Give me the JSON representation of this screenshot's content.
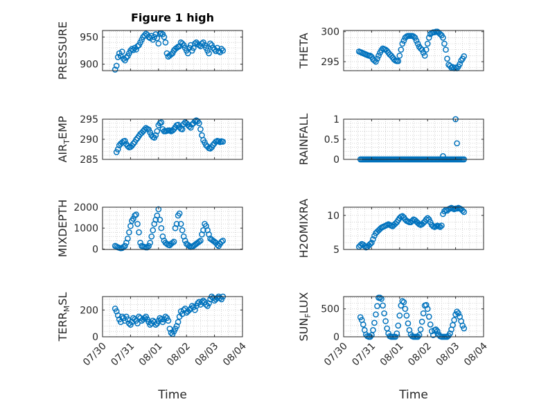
{
  "figure": {
    "title": "Figure 1 high",
    "marker_color": "#0072BD"
  },
  "x_ticks": [
    "07/30",
    "07/31",
    "08/01",
    "08/02",
    "08/03",
    "08/04"
  ],
  "xlabel": "Time",
  "chart_data": [
    {
      "type": "scatter",
      "title": "Figure 1 high",
      "ylabel": "PRESSURE",
      "ylim": [
        888,
        962
      ],
      "yticks": [
        900,
        950
      ],
      "xlim": [
        0,
        5
      ],
      "grid": true,
      "x": [
        0.45,
        0.5,
        0.55,
        0.6,
        0.65,
        0.7,
        0.75,
        0.8,
        0.85,
        0.9,
        0.95,
        1.0,
        1.05,
        1.1,
        1.15,
        1.2,
        1.25,
        1.3,
        1.35,
        1.4,
        1.45,
        1.5,
        1.55,
        1.6,
        1.65,
        1.7,
        1.75,
        1.8,
        1.85,
        1.9,
        1.95,
        2.0,
        2.05,
        2.1,
        2.15,
        2.2,
        2.25,
        2.3,
        2.35,
        2.4,
        2.45,
        2.5,
        2.55,
        2.6,
        2.65,
        2.7,
        2.75,
        2.8,
        2.85,
        2.9,
        2.95,
        3.0,
        3.05,
        3.1,
        3.15,
        3.2,
        3.25,
        3.3,
        3.35,
        3.4,
        3.45,
        3.5,
        3.55,
        3.6,
        3.65,
        3.7,
        3.75,
        3.8,
        3.85,
        3.9,
        3.95,
        4.0,
        4.05,
        4.1,
        4.15,
        4.2,
        4.25,
        4.3
      ],
      "y": [
        890,
        897,
        913,
        920,
        915,
        923,
        910,
        907,
        912,
        915,
        920,
        925,
        928,
        926,
        930,
        927,
        933,
        935,
        940,
        945,
        950,
        953,
        956,
        954,
        950,
        948,
        952,
        945,
        950,
        955,
        948,
        938,
        956,
        957,
        955,
        950,
        940,
        920,
        914,
        916,
        918,
        920,
        925,
        928,
        930,
        932,
        933,
        940,
        938,
        935,
        930,
        925,
        920,
        930,
        935,
        925,
        930,
        938,
        940,
        937,
        935,
        933,
        938,
        940,
        935,
        930,
        925,
        920,
        938,
        935,
        930,
        927,
        924,
        930,
        924,
        922,
        928,
        925
      ]
    },
    {
      "type": "scatter",
      "ylabel": "THETA",
      "ylim": [
        293.5,
        300.2
      ],
      "yticks": [
        295,
        300
      ],
      "xlim": [
        0,
        5
      ],
      "grid": true,
      "x": [
        0.55,
        0.6,
        0.65,
        0.7,
        0.75,
        0.8,
        0.85,
        0.9,
        0.95,
        1.0,
        1.05,
        1.1,
        1.15,
        1.2,
        1.25,
        1.3,
        1.35,
        1.4,
        1.45,
        1.5,
        1.55,
        1.6,
        1.65,
        1.7,
        1.75,
        1.8,
        1.85,
        1.9,
        1.95,
        2.0,
        2.05,
        2.1,
        2.15,
        2.2,
        2.25,
        2.3,
        2.35,
        2.4,
        2.45,
        2.5,
        2.55,
        2.6,
        2.65,
        2.7,
        2.75,
        2.8,
        2.85,
        2.9,
        2.95,
        3.0,
        3.05,
        3.1,
        3.15,
        3.2,
        3.25,
        3.3,
        3.35,
        3.4,
        3.45,
        3.5,
        3.55,
        3.6,
        3.65,
        3.7,
        3.75,
        3.8,
        3.85,
        3.9,
        3.95,
        4.0,
        4.05,
        4.1,
        4.15,
        4.2,
        4.25,
        4.3
      ],
      "y": [
        296.7,
        296.6,
        296.5,
        296.4,
        296.3,
        296.2,
        296.1,
        296.0,
        296.0,
        295.8,
        295.4,
        295.2,
        295.0,
        295.5,
        296.0,
        296.5,
        296.9,
        297.2,
        297.1,
        297.0,
        296.8,
        296.5,
        296.2,
        296.0,
        295.7,
        295.4,
        295.2,
        295.1,
        295.1,
        296.0,
        297.0,
        298.0,
        298.5,
        299.0,
        299.2,
        299.3,
        299.3,
        299.3,
        299.3,
        299.2,
        299.0,
        298.5,
        298.0,
        297.5,
        297.2,
        297.0,
        296.5,
        296.0,
        297.0,
        298.0,
        299.0,
        299.6,
        299.8,
        299.9,
        299.9,
        300.0,
        300.0,
        299.8,
        299.6,
        299.4,
        299.0,
        298.0,
        297.0,
        295.5,
        294.5,
        294.3,
        294.0,
        294.1,
        293.9,
        294.0,
        293.9,
        294.2,
        294.6,
        295.2,
        295.5,
        295.9
      ]
    },
    {
      "type": "scatter",
      "ylabel": "AIR_TEMP",
      "ylim": [
        285,
        295
      ],
      "yticks": [
        285,
        290,
        295
      ],
      "xlim": [
        0,
        5
      ],
      "grid": true,
      "x": [
        0.5,
        0.55,
        0.6,
        0.65,
        0.7,
        0.75,
        0.8,
        0.85,
        0.9,
        0.95,
        1.0,
        1.05,
        1.1,
        1.15,
        1.2,
        1.25,
        1.3,
        1.35,
        1.4,
        1.45,
        1.5,
        1.55,
        1.6,
        1.65,
        1.7,
        1.75,
        1.8,
        1.85,
        1.9,
        1.95,
        2.0,
        2.05,
        2.1,
        2.15,
        2.2,
        2.25,
        2.3,
        2.35,
        2.4,
        2.45,
        2.5,
        2.55,
        2.6,
        2.65,
        2.7,
        2.75,
        2.8,
        2.85,
        2.9,
        2.95,
        3.0,
        3.05,
        3.1,
        3.15,
        3.2,
        3.25,
        3.3,
        3.35,
        3.4,
        3.45,
        3.5,
        3.55,
        3.6,
        3.65,
        3.7,
        3.75,
        3.8,
        3.85,
        3.9,
        3.95,
        4.0,
        4.05,
        4.1,
        4.15,
        4.2,
        4.25,
        4.3
      ],
      "y": [
        286.8,
        287.5,
        288.5,
        288.9,
        289.2,
        289.5,
        289.6,
        288.8,
        288.3,
        288.0,
        288.1,
        288.4,
        288.9,
        289.3,
        289.9,
        290.3,
        290.8,
        291.3,
        291.6,
        292.0,
        292.4,
        292.8,
        292.6,
        292.4,
        291.7,
        291.0,
        290.6,
        290.4,
        291.0,
        292.0,
        293.5,
        294.0,
        294.2,
        292.5,
        292.0,
        292.0,
        292.1,
        292.2,
        292.2,
        292.0,
        292.2,
        292.5,
        293.0,
        293.5,
        293.6,
        293.0,
        292.6,
        292.5,
        293.8,
        294.2,
        294.0,
        293.6,
        293.2,
        292.9,
        293.7,
        294.0,
        294.5,
        294.7,
        294.5,
        294.0,
        292.5,
        291.0,
        289.8,
        289.2,
        288.5,
        288.2,
        287.8,
        287.7,
        288.0,
        288.6,
        289.0,
        289.4,
        289.6,
        289.5,
        289.3,
        289.5,
        289.4
      ]
    },
    {
      "type": "scatter",
      "ylabel": "RAINFALL",
      "ylim": [
        0,
        1
      ],
      "yticks": [
        0,
        0.5,
        1
      ],
      "ytick_labels": [
        "0",
        "0.5",
        "1"
      ],
      "xlim": [
        0,
        5
      ],
      "grid": true,
      "x": [
        0.6,
        0.65,
        0.7,
        0.75,
        0.8,
        0.85,
        0.9,
        0.95,
        1.0,
        1.05,
        1.1,
        1.15,
        1.2,
        1.25,
        1.3,
        1.35,
        1.4,
        1.45,
        1.5,
        1.55,
        1.6,
        1.65,
        1.7,
        1.75,
        1.8,
        1.85,
        1.9,
        1.95,
        2.0,
        2.05,
        2.1,
        2.15,
        2.2,
        2.25,
        2.3,
        2.35,
        2.4,
        2.45,
        2.5,
        2.55,
        2.6,
        2.65,
        2.7,
        2.75,
        2.8,
        2.85,
        2.9,
        2.95,
        3.0,
        3.05,
        3.1,
        3.15,
        3.2,
        3.25,
        3.3,
        3.35,
        3.4,
        3.45,
        3.5,
        3.55,
        3.6,
        3.65,
        3.7,
        3.75,
        3.8,
        3.85,
        3.9,
        3.95,
        4.0,
        4.05,
        4.1,
        4.15,
        4.2,
        4.25,
        4.3,
        3.55,
        4.0,
        4.05
      ],
      "y": [
        0,
        0,
        0,
        0,
        0,
        0,
        0,
        0,
        0,
        0,
        0,
        0,
        0,
        0,
        0,
        0,
        0,
        0,
        0,
        0,
        0,
        0,
        0,
        0,
        0,
        0,
        0,
        0,
        0,
        0,
        0,
        0,
        0,
        0,
        0,
        0,
        0,
        0,
        0,
        0,
        0,
        0,
        0,
        0,
        0,
        0,
        0,
        0,
        0,
        0,
        0,
        0,
        0,
        0,
        0,
        0,
        0,
        0,
        0,
        0,
        0,
        0,
        0,
        0,
        0,
        0,
        0,
        0,
        0,
        0,
        0,
        0,
        0,
        0,
        0,
        0.08,
        1.0,
        0.4
      ]
    },
    {
      "type": "scatter",
      "ylabel": "MIXDEPTH",
      "ylim": [
        -20,
        2000
      ],
      "yticks": [
        0,
        1000,
        2000
      ],
      "xlim": [
        0,
        5
      ],
      "grid": true,
      "x": [
        0.45,
        0.5,
        0.55,
        0.6,
        0.65,
        0.7,
        0.75,
        0.8,
        0.85,
        0.9,
        0.95,
        1.0,
        1.05,
        1.1,
        1.15,
        1.2,
        1.25,
        1.3,
        1.35,
        1.4,
        1.45,
        1.5,
        1.55,
        1.6,
        1.65,
        1.7,
        1.75,
        1.8,
        1.85,
        1.9,
        1.95,
        2.0,
        2.05,
        2.1,
        2.15,
        2.2,
        2.25,
        2.3,
        2.35,
        2.4,
        2.45,
        2.5,
        2.55,
        2.6,
        2.65,
        2.7,
        2.75,
        2.8,
        2.85,
        2.9,
        2.95,
        3.0,
        3.05,
        3.1,
        3.15,
        3.2,
        3.25,
        3.3,
        3.35,
        3.4,
        3.45,
        3.5,
        3.55,
        3.6,
        3.65,
        3.7,
        3.75,
        3.8,
        3.85,
        3.9,
        3.95,
        4.0,
        4.05,
        4.1,
        4.15,
        4.2,
        4.25,
        4.3
      ],
      "y": [
        150,
        120,
        80,
        60,
        40,
        50,
        100,
        150,
        300,
        500,
        800,
        1100,
        1350,
        1450,
        1600,
        1650,
        1200,
        800,
        300,
        150,
        120,
        100,
        80,
        80,
        150,
        300,
        600,
        900,
        1200,
        1400,
        1600,
        1900,
        1400,
        1000,
        600,
        400,
        300,
        250,
        200,
        180,
        250,
        300,
        350,
        1000,
        1200,
        1600,
        1700,
        1200,
        900,
        600,
        400,
        250,
        200,
        150,
        100,
        120,
        150,
        200,
        250,
        300,
        350,
        400,
        700,
        900,
        1200,
        1100,
        900,
        700,
        500,
        450,
        400,
        350,
        300,
        200,
        150,
        250,
        350,
        400
      ]
    },
    {
      "type": "scatter",
      "ylabel": "H2OMIXRA",
      "ylim": [
        5,
        11.2
      ],
      "yticks": [
        5,
        10
      ],
      "xlim": [
        0,
        5
      ],
      "grid": true,
      "x": [
        0.55,
        0.6,
        0.65,
        0.7,
        0.75,
        0.8,
        0.85,
        0.9,
        0.95,
        1.0,
        1.05,
        1.1,
        1.15,
        1.2,
        1.25,
        1.3,
        1.35,
        1.4,
        1.45,
        1.5,
        1.55,
        1.6,
        1.65,
        1.7,
        1.75,
        1.8,
        1.85,
        1.9,
        1.95,
        2.0,
        2.05,
        2.1,
        2.15,
        2.2,
        2.25,
        2.3,
        2.35,
        2.4,
        2.45,
        2.5,
        2.55,
        2.6,
        2.65,
        2.7,
        2.75,
        2.8,
        2.85,
        2.9,
        2.95,
        3.0,
        3.05,
        3.1,
        3.15,
        3.2,
        3.25,
        3.3,
        3.35,
        3.4,
        3.45,
        3.5,
        3.55,
        3.6,
        3.65,
        3.7,
        3.75,
        3.8,
        3.85,
        3.9,
        3.95,
        4.0,
        4.05,
        4.1,
        4.15,
        4.2,
        4.25,
        4.3
      ],
      "y": [
        5.4,
        5.6,
        5.8,
        5.7,
        5.5,
        5.3,
        5.4,
        5.6,
        5.8,
        6.0,
        6.5,
        7.0,
        7.4,
        7.6,
        7.8,
        8.0,
        8.2,
        8.3,
        8.4,
        8.5,
        8.6,
        8.7,
        8.6,
        8.5,
        8.4,
        8.6,
        8.8,
        9.0,
        9.3,
        9.6,
        9.8,
        9.9,
        9.7,
        9.4,
        9.2,
        9.1,
        9.0,
        9.0,
        9.2,
        9.4,
        9.3,
        9.1,
        8.9,
        8.7,
        8.6,
        8.7,
        8.9,
        9.1,
        9.4,
        9.6,
        9.4,
        9.0,
        8.6,
        8.4,
        8.3,
        8.4,
        8.5,
        8.4,
        8.3,
        8.5,
        10.2,
        10.6,
        10.8,
        10.7,
        10.9,
        11.0,
        11.1,
        11.0,
        10.9,
        11.0,
        11.0,
        11.1,
        11.0,
        10.9,
        10.7,
        10.5
      ]
    },
    {
      "type": "scatter",
      "ylabel": "TERR_MSL",
      "ylim": [
        0,
        300
      ],
      "yticks": [
        0,
        200
      ],
      "xlim": [
        0,
        5
      ],
      "grid": true,
      "x": [
        0.45,
        0.5,
        0.55,
        0.6,
        0.65,
        0.7,
        0.75,
        0.8,
        0.85,
        0.9,
        0.95,
        1.0,
        1.05,
        1.1,
        1.15,
        1.2,
        1.25,
        1.3,
        1.35,
        1.4,
        1.45,
        1.5,
        1.55,
        1.6,
        1.65,
        1.7,
        1.75,
        1.8,
        1.85,
        1.9,
        1.95,
        2.0,
        2.05,
        2.1,
        2.15,
        2.2,
        2.25,
        2.3,
        2.35,
        2.4,
        2.45,
        2.5,
        2.55,
        2.6,
        2.65,
        2.7,
        2.75,
        2.8,
        2.85,
        2.9,
        2.95,
        3.0,
        3.05,
        3.1,
        3.15,
        3.2,
        3.25,
        3.3,
        3.35,
        3.4,
        3.45,
        3.5,
        3.55,
        3.6,
        3.65,
        3.7,
        3.75,
        3.8,
        3.85,
        3.9,
        3.95,
        4.0,
        4.05,
        4.1,
        4.15,
        4.2,
        4.25,
        4.3
      ],
      "y": [
        210,
        190,
        160,
        130,
        110,
        150,
        140,
        120,
        150,
        130,
        100,
        90,
        110,
        140,
        130,
        120,
        100,
        150,
        140,
        120,
        130,
        140,
        150,
        130,
        110,
        90,
        100,
        120,
        110,
        90,
        100,
        120,
        140,
        130,
        110,
        130,
        150,
        140,
        120,
        60,
        30,
        20,
        40,
        60,
        80,
        110,
        150,
        190,
        170,
        200,
        210,
        180,
        190,
        200,
        210,
        230,
        220,
        200,
        230,
        250,
        260,
        240,
        260,
        270,
        260,
        240,
        230,
        250,
        280,
        300,
        290,
        270,
        280,
        290,
        300,
        290,
        280,
        300
      ]
    },
    {
      "type": "scatter",
      "ylabel": "SUN_FLUX",
      "ylim": [
        0,
        720
      ],
      "yticks": [
        0,
        500
      ],
      "xlim": [
        0,
        5
      ],
      "grid": true,
      "x": [
        0.6,
        0.65,
        0.7,
        0.75,
        0.8,
        0.85,
        0.9,
        0.95,
        1.0,
        1.05,
        1.1,
        1.15,
        1.2,
        1.25,
        1.3,
        1.35,
        1.4,
        1.45,
        1.5,
        1.55,
        1.6,
        1.65,
        1.7,
        1.75,
        1.8,
        1.85,
        1.9,
        1.95,
        2.0,
        2.05,
        2.1,
        2.15,
        2.2,
        2.25,
        2.3,
        2.35,
        2.4,
        2.45,
        2.5,
        2.55,
        2.6,
        2.65,
        2.7,
        2.75,
        2.8,
        2.85,
        2.9,
        2.95,
        3.0,
        3.05,
        3.1,
        3.15,
        3.2,
        3.25,
        3.3,
        3.35,
        3.4,
        3.45,
        3.5,
        3.55,
        3.6,
        3.65,
        3.7,
        3.75,
        3.8,
        3.85,
        3.9,
        3.95,
        4.0,
        4.05,
        4.1,
        4.15,
        4.2,
        4.25,
        4.3
      ],
      "y": [
        350,
        300,
        220,
        120,
        40,
        10,
        0,
        0,
        30,
        120,
        250,
        400,
        550,
        700,
        700,
        680,
        560,
        420,
        280,
        150,
        60,
        10,
        0,
        0,
        0,
        0,
        60,
        200,
        380,
        560,
        640,
        620,
        500,
        380,
        240,
        120,
        40,
        10,
        0,
        0,
        0,
        0,
        30,
        130,
        270,
        420,
        560,
        570,
        500,
        360,
        220,
        100,
        30,
        120,
        130,
        100,
        40,
        10,
        0,
        0,
        0,
        0,
        0,
        20,
        60,
        130,
        210,
        300,
        400,
        450,
        420,
        360,
        280,
        200,
        150
      ]
    }
  ]
}
